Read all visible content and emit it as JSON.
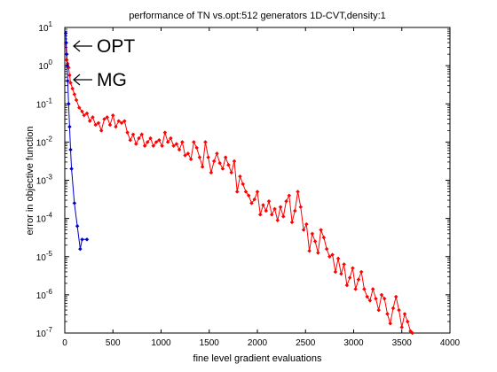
{
  "chart_data": {
    "type": "line",
    "title": "performance of TN vs.opt:512 generators 1D-CVT,density:1",
    "xlabel": "fine level gradient evaluations",
    "ylabel": "error in objective function",
    "xlim": [
      0,
      4000
    ],
    "ylim_log10": [
      -7,
      1
    ],
    "x_ticks": [
      0,
      500,
      1000,
      1500,
      2000,
      2500,
      3000,
      3500,
      4000
    ],
    "x_tick_labels": [
      "0",
      "500",
      "1000",
      "1500",
      "2000",
      "2500",
      "3000",
      "3500",
      "4000"
    ],
    "y_tick_exponents": [
      -7,
      -6,
      -5,
      -4,
      -3,
      -2,
      -1,
      0,
      1
    ],
    "y_tick_base": "10",
    "annotations": [
      {
        "text": "OPT",
        "points_to_series": "OPT"
      },
      {
        "text": "MG",
        "points_to_series": "MG"
      }
    ],
    "series": [
      {
        "name": "MG",
        "color": "#0000cc",
        "x": [
          10,
          15,
          20,
          25,
          30,
          40,
          50,
          60,
          70,
          100,
          130,
          160,
          180,
          230
        ],
        "log10_y": [
          0.85,
          0.6,
          0.3,
          0.0,
          -0.4,
          -1.0,
          -1.6,
          -2.2,
          -2.7,
          -3.6,
          -4.2,
          -4.8,
          -4.55,
          -4.55
        ]
      },
      {
        "name": "OPT",
        "color": "#ff0000",
        "x": [
          10,
          20,
          30,
          40,
          50,
          60,
          80,
          100,
          120,
          150,
          180,
          200,
          230,
          260,
          290,
          320,
          350,
          380,
          410,
          440,
          470,
          500,
          530,
          560,
          590,
          620,
          650,
          680,
          710,
          740,
          770,
          800,
          830,
          860,
          890,
          920,
          950,
          980,
          1010,
          1040,
          1070,
          1100,
          1130,
          1160,
          1190,
          1220,
          1250,
          1280,
          1310,
          1340,
          1370,
          1400,
          1430,
          1460,
          1490,
          1520,
          1550,
          1580,
          1610,
          1640,
          1670,
          1700,
          1730,
          1760,
          1790,
          1820,
          1850,
          1880,
          1910,
          1940,
          1970,
          2000,
          2030,
          2060,
          2090,
          2120,
          2150,
          2180,
          2210,
          2240,
          2270,
          2300,
          2330,
          2360,
          2390,
          2420,
          2450,
          2480,
          2510,
          2540,
          2570,
          2600,
          2630,
          2660,
          2690,
          2720,
          2750,
          2780,
          2810,
          2840,
          2870,
          2900,
          2930,
          2960,
          2990,
          3020,
          3050,
          3080,
          3110,
          3140,
          3170,
          3200,
          3230,
          3260,
          3290,
          3320,
          3350,
          3380,
          3410,
          3440,
          3470,
          3500,
          3530,
          3560,
          3590,
          3610
        ],
        "log10_y": [
          0.6,
          0.15,
          0.05,
          -0.05,
          -0.25,
          -0.45,
          -0.6,
          -0.75,
          -0.9,
          -1.1,
          -1.2,
          -1.3,
          -1.25,
          -1.45,
          -1.35,
          -1.55,
          -1.5,
          -1.7,
          -1.4,
          -1.35,
          -1.55,
          -1.3,
          -1.6,
          -1.45,
          -1.5,
          -1.45,
          -1.75,
          -1.95,
          -1.8,
          -2.05,
          -1.9,
          -1.8,
          -2.1,
          -2.0,
          -1.9,
          -2.1,
          -2.0,
          -1.95,
          -2.1,
          -1.75,
          -2.0,
          -1.9,
          -2.1,
          -2.05,
          -2.2,
          -2.0,
          -2.35,
          -2.3,
          -2.45,
          -2.0,
          -2.15,
          -2.4,
          -2.65,
          -2.0,
          -2.4,
          -2.8,
          -2.5,
          -2.3,
          -2.55,
          -2.7,
          -2.4,
          -2.6,
          -2.8,
          -2.5,
          -3.3,
          -2.9,
          -3.1,
          -3.3,
          -3.4,
          -3.6,
          -3.5,
          -3.3,
          -3.9,
          -3.65,
          -3.8,
          -3.55,
          -3.9,
          -3.75,
          -4.05,
          -3.7,
          -3.95,
          -3.55,
          -3.4,
          -4.1,
          -3.8,
          -3.3,
          -3.7,
          -4.3,
          -4.15,
          -4.85,
          -4.4,
          -4.6,
          -4.9,
          -4.3,
          -4.5,
          -4.8,
          -5.0,
          -4.95,
          -5.4,
          -5.05,
          -5.45,
          -5.2,
          -5.75,
          -5.55,
          -5.3,
          -5.85,
          -5.6,
          -5.4,
          -5.85,
          -6.05,
          -6.15,
          -5.85,
          -6.1,
          -6.4,
          -6.0,
          -6.1,
          -6.5,
          -6.75,
          -6.35,
          -6.05,
          -6.4,
          -6.85,
          -6.5,
          -6.7,
          -6.95,
          -7.0
        ]
      }
    ]
  }
}
